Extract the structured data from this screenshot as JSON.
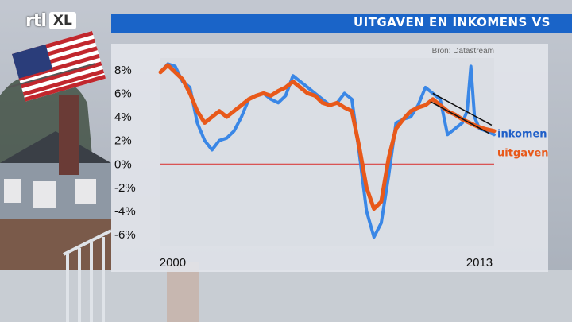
{
  "broadcast": {
    "logo_rtl": "rtl",
    "logo_xl": "XL",
    "title": "UITGAVEN EN INKOMENS VS"
  },
  "colors": {
    "title_bar": "#1a64c8",
    "inkomen": "#3a87e6",
    "uitgaven": "#e8591a",
    "zero_line": "#d94040",
    "trend_line": "#111111"
  },
  "chart_data": {
    "type": "line",
    "title": "UITGAVEN EN INKOMENS VS",
    "source": "Bron: Datastream",
    "xlabel": "",
    "ylabel": "",
    "xlim": [
      2000.0,
      2013.6
    ],
    "ylim": [
      -7,
      9
    ],
    "y_ticks": [
      8,
      6,
      4,
      2,
      0,
      -2,
      -4,
      -6
    ],
    "y_tick_labels": [
      "8%",
      "6%",
      "4%",
      "2%",
      "0%",
      "-2%",
      "-4%",
      "-6%"
    ],
    "x_tick_labels": [
      {
        "x": 2000.5,
        "label": "2000"
      },
      {
        "x": 2013.0,
        "label": "2013"
      }
    ],
    "zero_line": 0,
    "series": [
      {
        "name": "inkomen",
        "x": [
          2000.0,
          2000.3,
          2000.6,
          2000.9,
          2001.2,
          2001.5,
          2001.8,
          2002.1,
          2002.4,
          2002.7,
          2003.0,
          2003.3,
          2003.6,
          2003.9,
          2004.2,
          2004.5,
          2004.8,
          2005.1,
          2005.4,
          2005.7,
          2006.0,
          2006.3,
          2006.6,
          2006.9,
          2007.2,
          2007.5,
          2007.8,
          2008.1,
          2008.4,
          2008.7,
          2009.0,
          2009.3,
          2009.6,
          2009.9,
          2010.2,
          2010.5,
          2010.8,
          2011.1,
          2011.4,
          2011.7,
          2012.0,
          2012.3,
          2012.5,
          2012.65,
          2012.8,
          2013.0,
          2013.3,
          2013.6
        ],
        "y": [
          7.8,
          8.5,
          8.3,
          7.0,
          6.5,
          3.5,
          2.0,
          1.2,
          2.0,
          2.2,
          2.8,
          4.0,
          5.5,
          5.8,
          6.0,
          5.5,
          5.2,
          5.8,
          7.5,
          7.0,
          6.5,
          6.0,
          5.5,
          5.0,
          5.2,
          6.0,
          5.5,
          1.0,
          -4.0,
          -6.2,
          -5.0,
          -1.0,
          3.5,
          3.8,
          4.0,
          5.0,
          6.5,
          6.0,
          5.5,
          2.5,
          3.0,
          3.5,
          4.5,
          8.3,
          4.0,
          3.0,
          2.8,
          2.5
        ]
      },
      {
        "name": "uitgaven",
        "x": [
          2000.0,
          2000.3,
          2000.6,
          2000.9,
          2001.2,
          2001.5,
          2001.8,
          2002.1,
          2002.4,
          2002.7,
          2003.0,
          2003.3,
          2003.6,
          2003.9,
          2004.2,
          2004.5,
          2004.8,
          2005.1,
          2005.4,
          2005.7,
          2006.0,
          2006.3,
          2006.6,
          2006.9,
          2007.2,
          2007.5,
          2007.8,
          2008.1,
          2008.4,
          2008.7,
          2009.0,
          2009.3,
          2009.6,
          2009.9,
          2010.2,
          2010.5,
          2010.8,
          2011.1,
          2011.4,
          2011.7,
          2012.0,
          2012.3,
          2012.6,
          2012.9,
          2013.2,
          2013.6
        ],
        "y": [
          7.8,
          8.4,
          7.8,
          7.2,
          6.0,
          4.5,
          3.5,
          4.0,
          4.5,
          4.0,
          4.5,
          5.0,
          5.5,
          5.8,
          6.0,
          5.8,
          6.2,
          6.5,
          7.0,
          6.5,
          6.0,
          5.8,
          5.2,
          5.0,
          5.2,
          4.8,
          4.5,
          1.5,
          -2.0,
          -3.8,
          -3.2,
          0.5,
          3.0,
          3.8,
          4.5,
          4.8,
          5.0,
          5.5,
          5.0,
          4.5,
          4.2,
          3.8,
          3.5,
          3.2,
          3.0,
          2.8
        ]
      }
    ],
    "trend_lines": [
      {
        "x": [
          2011.1,
          2013.5
        ],
        "y": [
          6.0,
          3.3
        ]
      },
      {
        "x": [
          2011.0,
          2013.4
        ],
        "y": [
          5.3,
          2.6
        ]
      }
    ],
    "annotations": [
      {
        "text": "inkomen",
        "series": "inkomen"
      },
      {
        "text": "uitgaven",
        "series": "uitgaven"
      }
    ],
    "grid": false
  }
}
